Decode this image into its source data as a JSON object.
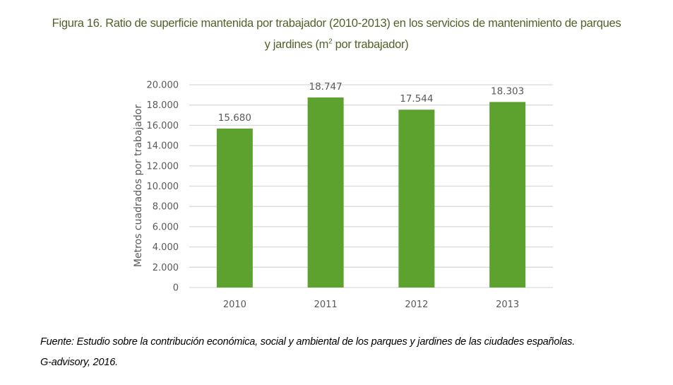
{
  "figure": {
    "title_part1": "Figura 16. Ratio de superficie mantenida por trabajador (2010-2013) en los servicios de mantenimiento de parques",
    "title_part2_prefix": "y jardines (m",
    "title_sup": "2",
    "title_part2_suffix": " por trabajador)",
    "source_line1": "Fuente: Estudio sobre la contribución económica, social y ambiental de los parques y jardines de las ciudades españolas.",
    "source_line2": "G-advisory, 2016."
  },
  "colors": {
    "bar": "#5da22e",
    "grid": "#d9d9d9",
    "text": "#595959",
    "title": "#4f6228"
  },
  "chart_data": {
    "type": "bar",
    "title": "Figura 16. Ratio de superficie mantenida por trabajador (2010-2013) en los servicios de mantenimiento de parques y jardines (m2 por trabajador)",
    "xlabel": "",
    "ylabel": "Metros cuadrados por trabajador",
    "categories": [
      "2010",
      "2011",
      "2012",
      "2013"
    ],
    "values": [
      15680,
      18747,
      17544,
      18303
    ],
    "data_labels": [
      "15.680",
      "18.747",
      "17.544",
      "18.303"
    ],
    "ylim": [
      0,
      20000
    ],
    "yticks": [
      0,
      2000,
      4000,
      6000,
      8000,
      10000,
      12000,
      14000,
      16000,
      18000,
      20000
    ],
    "ytick_labels": [
      "0",
      "2.000",
      "4.000",
      "6.000",
      "8.000",
      "10.000",
      "12.000",
      "14.000",
      "16.000",
      "18.000",
      "20.000"
    ],
    "grid": true,
    "legend": "none"
  }
}
